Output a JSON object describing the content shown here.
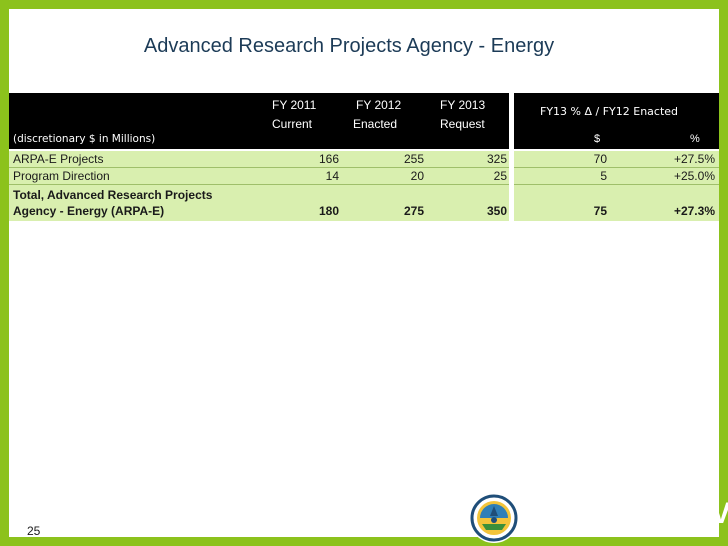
{
  "slide_title": "Advanced Research Projects Agency - Energy",
  "page_number": "25",
  "brand": "ENERGY.GOV",
  "colors": {
    "frame": "#8cc21c",
    "header_bg": "#000000",
    "row_bg": "#d9efaf",
    "title": "#1c3b57"
  },
  "table": {
    "units_label": "(discretionary  $ in Millions)",
    "columns": [
      {
        "line1": "FY 2011",
        "line2": "Current"
      },
      {
        "line1": "FY 2012",
        "line2": "Enacted"
      },
      {
        "line1": "FY 2013",
        "line2": "Request"
      }
    ],
    "delta_header": "FY13 % Δ / FY12 Enacted",
    "delta_subheaders": [
      "$",
      "%"
    ],
    "rows": [
      {
        "label": "ARPA-E Projects",
        "fy2011": "166",
        "fy2012": "255",
        "fy2013": "325",
        "delta_dollars": "70",
        "delta_pct": "+27.5%"
      },
      {
        "label": "Program Direction",
        "fy2011": "14",
        "fy2012": "20",
        "fy2013": "25",
        "delta_dollars": "5",
        "delta_pct": "+25.0%"
      }
    ],
    "total": {
      "label_line1": "Total, Advanced Research Projects",
      "label_line2": "Agency - Energy (ARPA-E)",
      "fy2011": "180",
      "fy2012": "275",
      "fy2013": "350",
      "delta_dollars": "75",
      "delta_pct": "+27.3%"
    }
  }
}
